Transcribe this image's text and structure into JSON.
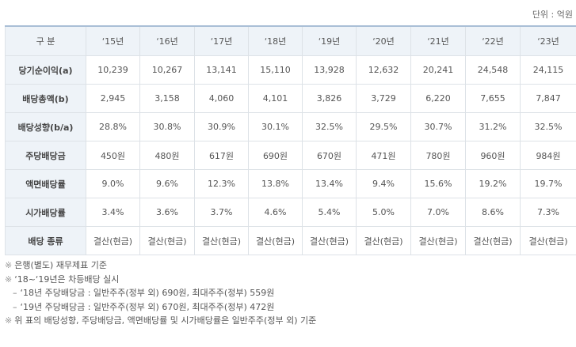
{
  "unit_label": "단위 : 억원",
  "table": {
    "header": [
      "구 분",
      "‘15년",
      "‘16년",
      "‘17년",
      "‘18년",
      "‘19년",
      "‘20년",
      "‘21년",
      "‘22년",
      "‘23년"
    ],
    "rows": [
      {
        "label": "당기순이익(a)",
        "values": [
          "10,239",
          "10,267",
          "13,141",
          "15,110",
          "13,928",
          "12,632",
          "20,241",
          "24,548",
          "24,115"
        ]
      },
      {
        "label": "배당총액(b)",
        "values": [
          "2,945",
          "3,158",
          "4,060",
          "4,101",
          "3,826",
          "3,729",
          "6,220",
          "7,655",
          "7,847"
        ]
      },
      {
        "label": "배당성향(b/a)",
        "values": [
          "28.8%",
          "30.8%",
          "30.9%",
          "30.1%",
          "32.5%",
          "29.5%",
          "30.7%",
          "31.2%",
          "32.5%"
        ]
      },
      {
        "label": "주당배당금",
        "values": [
          "450원",
          "480원",
          "617원",
          "690원",
          "670원",
          "471원",
          "780원",
          "960원",
          "984원"
        ]
      },
      {
        "label": "액면배당률",
        "values": [
          "9.0%",
          "9.6%",
          "12.3%",
          "13.8%",
          "13.4%",
          "9.4%",
          "15.6%",
          "19.2%",
          "19.7%"
        ]
      },
      {
        "label": "시가배당률",
        "values": [
          "3.4%",
          "3.6%",
          "3.7%",
          "4.6%",
          "5.4%",
          "5.0%",
          "7.0%",
          "8.6%",
          "7.3%"
        ]
      },
      {
        "label": "배당 종류",
        "values": [
          "결산(현금)",
          "결산(현금)",
          "결산(현금)",
          "결산(현금)",
          "결산(현금)",
          "결산(현금)",
          "결산(현금)",
          "결산(현금)",
          "결산(현금)"
        ]
      }
    ]
  },
  "notes": {
    "mark": "※",
    "dash": "–",
    "note1": "은행(별도) 재무제표 기준",
    "note2": "‘18~‘19년은 차등배당 실시",
    "note2_sub1": "‘18년 주당배당금 : 일반주주(정부 외) 690원, 최대주주(정부) 559원",
    "note2_sub2": "‘19년 주당배당금 : 일반주주(정부 외) 670원, 최대주주(정부) 472원",
    "note3": "위 표의 배당성향, 주당배당금, 액면배당률 및 시가배당률은 일반주주(정부 외) 기준"
  }
}
